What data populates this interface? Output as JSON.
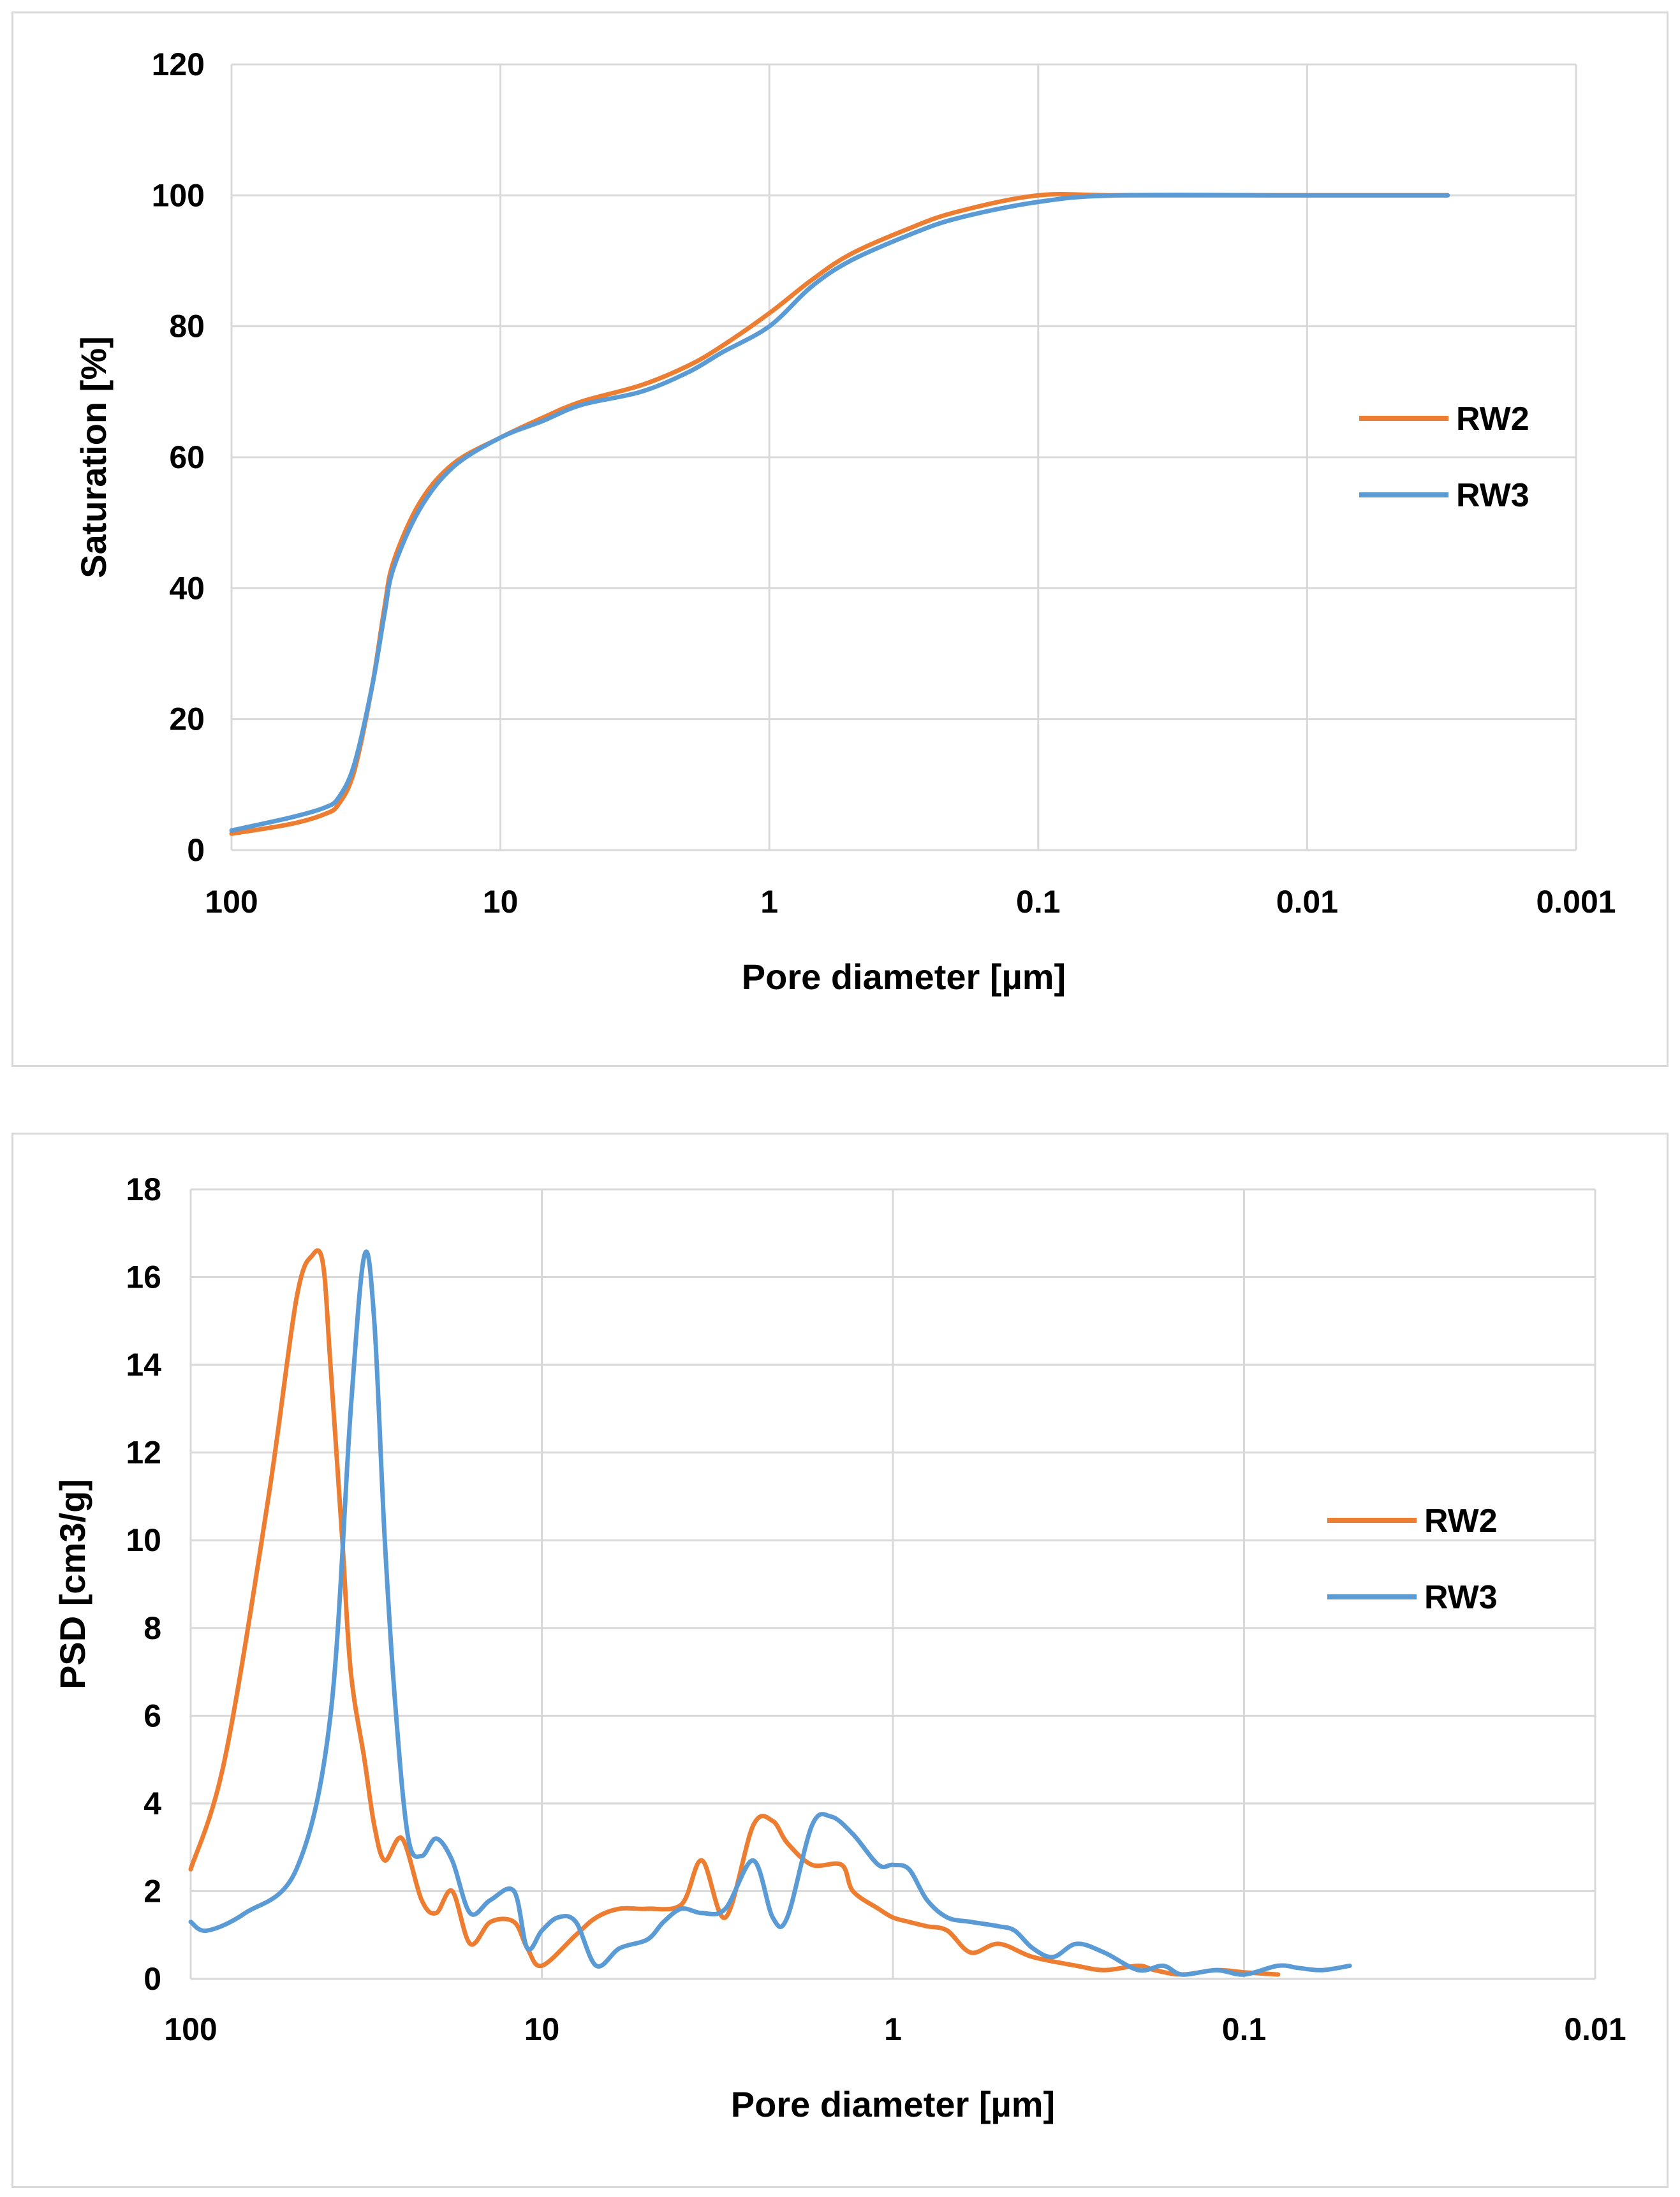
{
  "chart_data": [
    {
      "type": "line",
      "xscale": "log",
      "xreversed": true,
      "xlabel": "Pore diameter [µm]",
      "ylabel": "Saturation [%]",
      "xlim": [
        100,
        0.001
      ],
      "ylim": [
        0,
        120
      ],
      "xticks": [
        100,
        10,
        1,
        0.1,
        0.01,
        0.001
      ],
      "xtick_labels": [
        "100",
        "10",
        "1",
        "0.1",
        "0.01",
        "0.001"
      ],
      "yticks": [
        0,
        20,
        40,
        60,
        80,
        100,
        120
      ],
      "ytick_labels": [
        "0",
        "20",
        "40",
        "60",
        "80",
        "100",
        "120"
      ],
      "legend_position": "right",
      "series": [
        {
          "name": "RW2",
          "color": "#ED7D31",
          "x": [
            100,
            60,
            45,
            40,
            35,
            30,
            27,
            25,
            20,
            15,
            10,
            7,
            5,
            3,
            2,
            1.5,
            1,
            0.7,
            0.5,
            0.3,
            0.2,
            0.1,
            0.05,
            0.01,
            0.003
          ],
          "y": [
            2.5,
            4,
            5.5,
            7,
            12,
            25,
            37,
            44,
            53,
            59,
            63,
            66,
            68.5,
            71,
            74,
            77,
            82,
            87,
            91,
            95,
            97.5,
            100,
            100,
            100,
            100
          ]
        },
        {
          "name": "RW3",
          "color": "#5B9BD5",
          "x": [
            100,
            60,
            45,
            40,
            35,
            30,
            27,
            25,
            20,
            15,
            10,
            7,
            5,
            3,
            2,
            1.5,
            1,
            0.7,
            0.5,
            0.3,
            0.2,
            0.1,
            0.05,
            0.01,
            0.003
          ],
          "y": [
            3,
            5,
            6.5,
            8,
            13,
            25,
            36,
            43,
            52,
            58.5,
            63,
            65.5,
            68,
            70,
            73,
            76,
            80,
            86,
            90,
            94,
            96.5,
            99,
            100,
            100,
            100
          ]
        }
      ]
    },
    {
      "type": "line",
      "xscale": "log",
      "xreversed": true,
      "xlabel": "Pore diameter [µm]",
      "ylabel": "PSD [cm3/g]",
      "xlim": [
        100,
        0.01
      ],
      "ylim": [
        0,
        18
      ],
      "xticks": [
        100,
        10,
        1,
        0.1,
        0.01
      ],
      "xtick_labels": [
        "100",
        "10",
        "1",
        "0.1",
        "0.01"
      ],
      "yticks": [
        0,
        2,
        4,
        6,
        8,
        10,
        12,
        14,
        16,
        18
      ],
      "ytick_labels": [
        "0",
        "2",
        "4",
        "6",
        "8",
        "10",
        "12",
        "14",
        "16",
        "18"
      ],
      "legend_position": "right",
      "series": [
        {
          "name": "RW2",
          "color": "#ED7D31",
          "x": [
            100,
            80,
            60,
            50,
            45,
            42,
            40,
            37,
            35,
            32,
            30,
            28,
            25,
            22,
            20,
            18,
            16,
            14,
            12,
            11,
            10,
            8,
            7,
            6,
            5,
            4,
            3.5,
            3,
            2.5,
            2.2,
            2,
            1.7,
            1.4,
            1.3,
            1.1,
            1,
            0.9,
            0.8,
            0.7,
            0.6,
            0.5,
            0.4,
            0.3,
            0.25,
            0.2,
            0.18,
            0.15,
            0.12,
            0.1,
            0.08
          ],
          "y": [
            2.5,
            5,
            11,
            15.5,
            16.5,
            16.3,
            14,
            10,
            7,
            5,
            3.5,
            2.7,
            3.2,
            1.8,
            1.5,
            2,
            0.8,
            1.3,
            1.3,
            0.7,
            0.3,
            1.0,
            1.4,
            1.6,
            1.6,
            1.7,
            2.7,
            1.4,
            3.5,
            3.6,
            3.1,
            2.6,
            2.6,
            2.0,
            1.6,
            1.4,
            1.3,
            1.2,
            1.1,
            0.6,
            0.8,
            0.5,
            0.3,
            0.2,
            0.3,
            0.2,
            0.1,
            0.2,
            0.15,
            0.1
          ]
        },
        {
          "name": "RW3",
          "color": "#5B9BD5",
          "x": [
            100,
            90,
            70,
            50,
            40,
            35,
            32,
            30,
            28,
            26,
            24,
            22,
            20,
            18,
            16,
            14,
            12,
            11,
            10,
            9,
            8,
            7,
            6,
            5,
            4.5,
            4,
            3.5,
            3,
            2.5,
            2.2,
            2,
            1.7,
            1.5,
            1.3,
            1.1,
            1,
            0.9,
            0.8,
            0.7,
            0.6,
            0.5,
            0.45,
            0.4,
            0.35,
            0.3,
            0.25,
            0.2,
            0.17,
            0.15,
            0.12,
            0.1,
            0.08,
            0.07,
            0.06,
            0.05
          ],
          "y": [
            1.3,
            1.1,
            1.5,
            2.5,
            6,
            13,
            16.5,
            15,
            10,
            6,
            3.2,
            2.8,
            3.2,
            2.7,
            1.5,
            1.8,
            2.0,
            0.7,
            1.1,
            1.4,
            1.3,
            0.3,
            0.7,
            0.9,
            1.3,
            1.6,
            1.5,
            1.6,
            2.7,
            1.4,
            1.4,
            3.5,
            3.7,
            3.3,
            2.6,
            2.6,
            2.5,
            1.8,
            1.4,
            1.3,
            1.2,
            1.1,
            0.7,
            0.5,
            0.8,
            0.6,
            0.2,
            0.3,
            0.1,
            0.2,
            0.1,
            0.3,
            0.25,
            0.2,
            0.3
          ]
        }
      ]
    }
  ]
}
